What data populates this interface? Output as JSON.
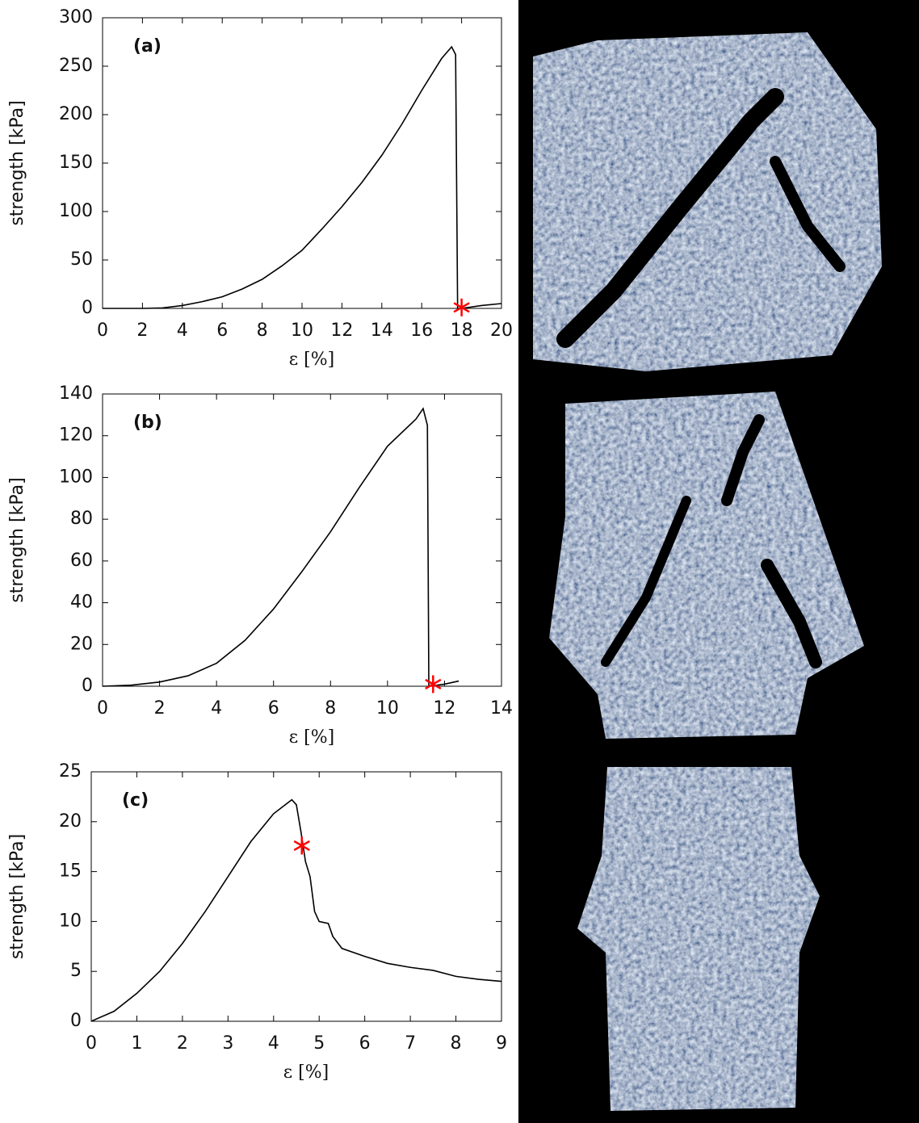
{
  "chart_data": [
    {
      "type": "line",
      "label": "(a)",
      "x_label": "ε [%]",
      "y_label": "strength [kPa]",
      "x": [
        0,
        1,
        2,
        3,
        4,
        5,
        6,
        7,
        8,
        9,
        10,
        11,
        12,
        13,
        14,
        15,
        16,
        17,
        17.5,
        17.7,
        17.8,
        18,
        19,
        20
      ],
      "series": [
        {
          "color": "#000000",
          "values": [
            0,
            0,
            0,
            0.5,
            3,
            7,
            12,
            20,
            30,
            44,
            60,
            82,
            105,
            130,
            158,
            190,
            225,
            258,
            270,
            262,
            0,
            0,
            3,
            5
          ]
        }
      ],
      "highlight": {
        "x": 18,
        "y": 1,
        "color": "#ff0000"
      },
      "xlim": [
        0,
        20
      ],
      "ylim": [
        0,
        300
      ],
      "xticks": [
        0,
        2,
        4,
        6,
        8,
        10,
        12,
        14,
        16,
        18,
        20
      ],
      "yticks": [
        0,
        50,
        100,
        150,
        200,
        250,
        300
      ]
    },
    {
      "type": "line",
      "label": "(b)",
      "x_label": "ε [%]",
      "y_label": "strength [kPa]",
      "x": [
        0,
        1,
        2,
        3,
        4,
        5,
        6,
        7,
        8,
        9,
        10,
        11,
        11.25,
        11.4,
        11.45,
        12,
        12.5
      ],
      "series": [
        {
          "color": "#000000",
          "values": [
            0,
            0.5,
            2,
            5,
            11,
            22,
            37,
            55,
            74,
            95,
            115,
            128,
            133,
            125,
            0,
            1,
            2.5
          ]
        }
      ],
      "highlight": {
        "x": 11.6,
        "y": 1,
        "color": "#ff0000"
      },
      "xlim": [
        0,
        14
      ],
      "ylim": [
        0,
        140
      ],
      "xticks": [
        0,
        2,
        4,
        6,
        8,
        10,
        12,
        14
      ],
      "yticks": [
        0,
        20,
        40,
        60,
        80,
        100,
        120,
        140
      ]
    },
    {
      "type": "line",
      "label": "(c)",
      "x_label": "ε [%]",
      "y_label": "strength [kPa]",
      "x": [
        0,
        0.5,
        1,
        1.5,
        2,
        2.5,
        3,
        3.5,
        4,
        4.4,
        4.5,
        4.6,
        4.7,
        4.8,
        4.9,
        5,
        5.2,
        5.3,
        5.5,
        6,
        6.5,
        7,
        7.5,
        8,
        8.5,
        9
      ],
      "series": [
        {
          "color": "#000000",
          "values": [
            0,
            1,
            2.8,
            5,
            7.8,
            11,
            14.5,
            18,
            20.8,
            22.2,
            21.7,
            19,
            16,
            14.5,
            11,
            10,
            9.8,
            8.5,
            7.3,
            6.5,
            5.8,
            5.4,
            5.1,
            4.5,
            4.2,
            4
          ]
        }
      ],
      "highlight": {
        "x": 4.62,
        "y": 17.6,
        "color": "#ff0000"
      },
      "xlim": [
        0,
        9
      ],
      "ylim": [
        0,
        25
      ],
      "xticks": [
        0,
        1,
        2,
        3,
        4,
        5,
        6,
        7,
        8,
        9
      ],
      "yticks": [
        0,
        5,
        10,
        15,
        20,
        25
      ]
    }
  ]
}
